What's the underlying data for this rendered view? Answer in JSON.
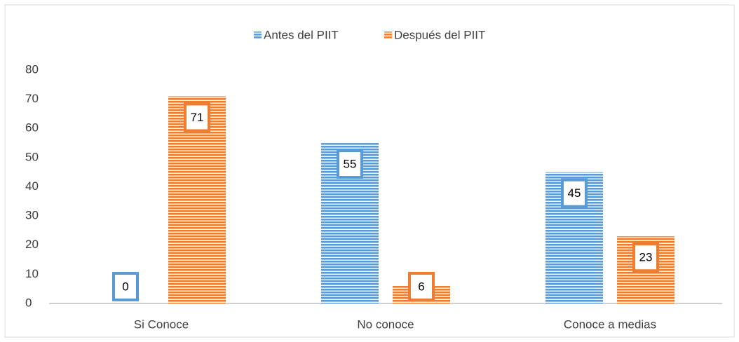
{
  "chart_data": {
    "type": "bar",
    "categories": [
      "Si Conoce",
      "No conoce",
      "Conoce a medias"
    ],
    "series": [
      {
        "name": "Antes del PIIT",
        "color": "#5b9bd5",
        "values": [
          0,
          55,
          45
        ]
      },
      {
        "name": "Después del PIIT",
        "color": "#ed7d31",
        "values": [
          71,
          6,
          23
        ]
      }
    ],
    "ylim": [
      0,
      80
    ],
    "yticks": [
      0,
      10,
      20,
      30,
      40,
      50,
      60,
      70,
      80
    ],
    "grid": false,
    "legend": "top"
  }
}
